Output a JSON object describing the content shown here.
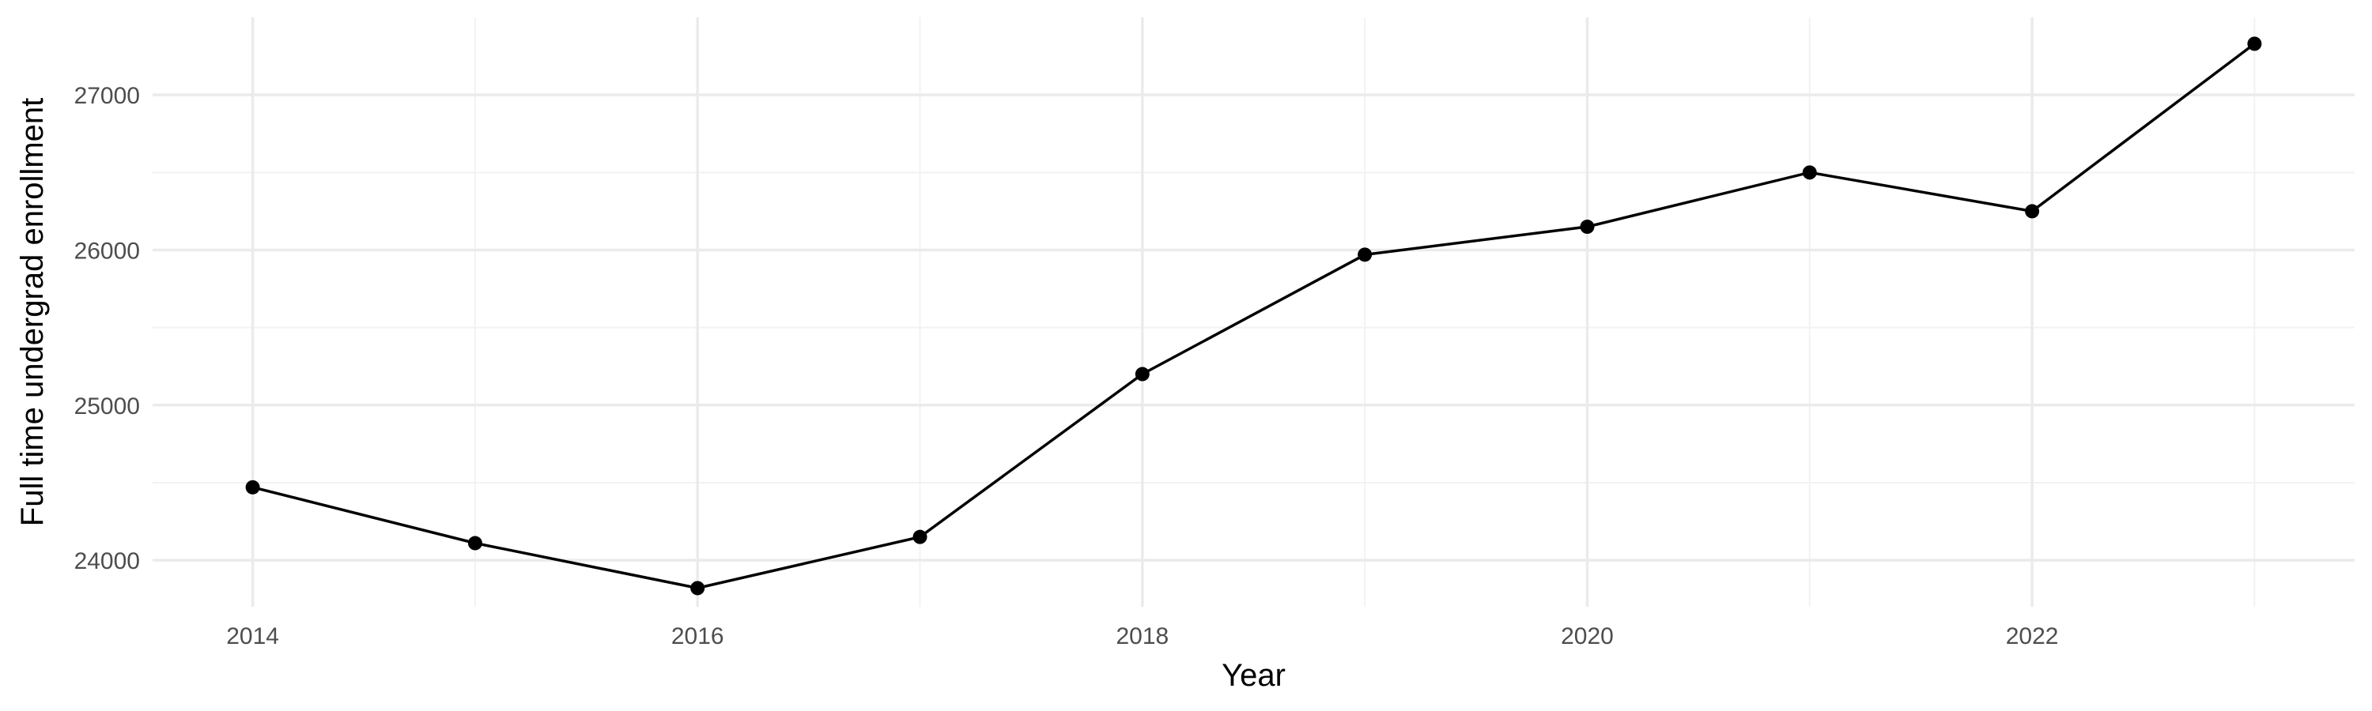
{
  "chart_data": {
    "type": "line",
    "title": "",
    "xlabel": "Year",
    "ylabel": "Full time undergrad enrollment",
    "xlim": [
      2013.55,
      2023.45
    ],
    "ylim": [
      23700,
      27500
    ],
    "x_ticks": [
      2014,
      2016,
      2018,
      2020,
      2022
    ],
    "x_tick_labels": [
      "2014",
      "2016",
      "2018",
      "2020",
      "2022"
    ],
    "x_minor_ticks": [
      2015,
      2017,
      2019,
      2021,
      2023
    ],
    "y_ticks": [
      24000,
      25000,
      26000,
      27000
    ],
    "y_tick_labels": [
      "24000",
      "25000",
      "26000",
      "27000"
    ],
    "y_minor_ticks": [
      24500,
      25500,
      26500
    ],
    "grid": true,
    "legend": "none",
    "colors": {
      "line": "#000000",
      "grid_major": "#ebebeb",
      "grid_minor": "#f2f2f2",
      "tick_text": "#4d4d4d"
    },
    "x": [
      2014,
      2015,
      2016,
      2017,
      2018,
      2019,
      2020,
      2021,
      2022,
      2023
    ],
    "values": [
      24470,
      24110,
      23820,
      24150,
      25200,
      25970,
      26150,
      26500,
      26250,
      27330
    ]
  }
}
